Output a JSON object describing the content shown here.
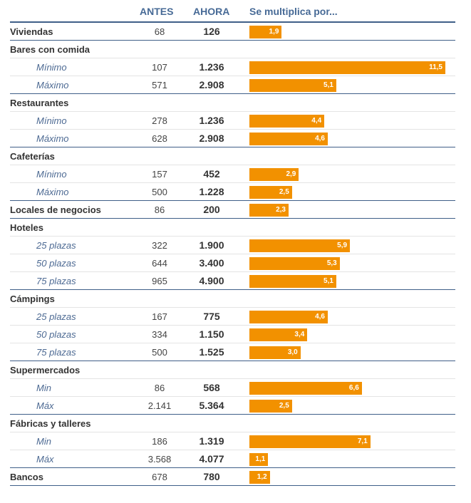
{
  "chart_data": {
    "type": "bar",
    "headers": {
      "antes": "ANTES",
      "ahora": "AHORA",
      "factor": "Se multiplica por..."
    },
    "colors": {
      "bar": "#f29100",
      "header": "#476a96",
      "rule": "#3f5f88"
    },
    "xlim": [
      0,
      11.5
    ],
    "rows": [
      {
        "label": "Viviendas",
        "kind": "item",
        "antes": "68",
        "ahora": "126",
        "factor": 1.9,
        "factor_label": "1,9"
      },
      {
        "label": "Bares con comida",
        "kind": "group"
      },
      {
        "label": "Mínimo",
        "kind": "sub",
        "antes": "107",
        "ahora": "1.236",
        "factor": 11.5,
        "factor_label": "11,5"
      },
      {
        "label": "Máximo",
        "kind": "sub",
        "antes": "571",
        "ahora": "2.908",
        "factor": 5.1,
        "factor_label": "5,1"
      },
      {
        "label": "Restaurantes",
        "kind": "group"
      },
      {
        "label": "Mínimo",
        "kind": "sub",
        "antes": "278",
        "ahora": "1.236",
        "factor": 4.4,
        "factor_label": "4,4"
      },
      {
        "label": "Máximo",
        "kind": "sub",
        "antes": "628",
        "ahora": "2.908",
        "factor": 4.6,
        "factor_label": "4,6"
      },
      {
        "label": "Cafeterías",
        "kind": "group"
      },
      {
        "label": "Mínimo",
        "kind": "sub",
        "antes": "157",
        "ahora": "452",
        "factor": 2.9,
        "factor_label": "2,9"
      },
      {
        "label": "Máximo",
        "kind": "sub",
        "antes": "500",
        "ahora": "1.228",
        "factor": 2.5,
        "factor_label": "2,5"
      },
      {
        "label": "Locales de negocios",
        "kind": "item",
        "antes": "86",
        "ahora": "200",
        "factor": 2.3,
        "factor_label": "2,3"
      },
      {
        "label": "Hoteles",
        "kind": "group"
      },
      {
        "label": "25 plazas",
        "kind": "sub",
        "antes": "322",
        "ahora": "1.900",
        "factor": 5.9,
        "factor_label": "5,9"
      },
      {
        "label": "50 plazas",
        "kind": "sub",
        "antes": "644",
        "ahora": "3.400",
        "factor": 5.3,
        "factor_label": "5,3"
      },
      {
        "label": "75 plazas",
        "kind": "sub",
        "antes": "965",
        "ahora": "4.900",
        "factor": 5.1,
        "factor_label": "5,1"
      },
      {
        "label": "Cámpings",
        "kind": "group"
      },
      {
        "label": "25 plazas",
        "kind": "sub",
        "antes": "167",
        "ahora": "775",
        "factor": 4.6,
        "factor_label": "4,6"
      },
      {
        "label": "50 plazas",
        "kind": "sub",
        "antes": "334",
        "ahora": "1.150",
        "factor": 3.4,
        "factor_label": "3,4"
      },
      {
        "label": "75 plazas",
        "kind": "sub",
        "antes": "500",
        "ahora": "1.525",
        "factor": 3.0,
        "factor_label": "3,0"
      },
      {
        "label": "Supermercados",
        "kind": "group"
      },
      {
        "label": "Min",
        "kind": "sub",
        "antes": "86",
        "ahora": "568",
        "factor": 6.6,
        "factor_label": "6,6"
      },
      {
        "label": "Máx",
        "kind": "sub",
        "antes": "2.141",
        "ahora": "5.364",
        "factor": 2.5,
        "factor_label": "2,5"
      },
      {
        "label": "Fábricas y talleres",
        "kind": "group"
      },
      {
        "label": "Min",
        "kind": "sub",
        "antes": "186",
        "ahora": "1.319",
        "factor": 7.1,
        "factor_label": "7,1"
      },
      {
        "label": "Máx",
        "kind": "sub",
        "antes": "3.568",
        "ahora": "4.077",
        "factor": 1.1,
        "factor_label": "1,1"
      },
      {
        "label": "Bancos",
        "kind": "item",
        "antes": "678",
        "ahora": "780",
        "factor": 1.2,
        "factor_label": "1,2"
      }
    ]
  }
}
